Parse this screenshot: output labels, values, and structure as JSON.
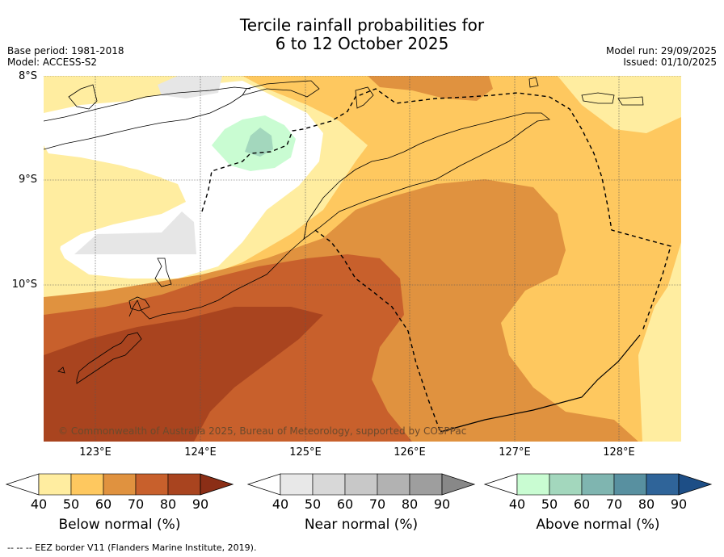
{
  "title": {
    "line1": "Tercile rainfall probabilities for",
    "line2": "6 to 12 October 2025"
  },
  "meta": {
    "base_period": "Base period: 1981-2018",
    "model": "Model: ACCESS-S2",
    "model_run": "Model run: 29/09/2025",
    "issued": "Issued: 01/10/2025"
  },
  "map": {
    "lat_labels": [
      "8°S",
      "9°S",
      "10°S"
    ],
    "lon_labels": [
      "123°E",
      "124°E",
      "125°E",
      "126°E",
      "127°E",
      "128°E"
    ],
    "copyright": "© Commonwealth of Australia 2025, Bureau of Meteorology, supported by COSPPac"
  },
  "colorbars": {
    "below": {
      "title": "Below normal (%)",
      "ticks": [
        "40",
        "50",
        "60",
        "70",
        "80",
        "90"
      ],
      "colors": [
        "#ffffff",
        "#ffeda0",
        "#fec85f",
        "#e0923f",
        "#c8602c",
        "#a9441f",
        "#8b2e16"
      ]
    },
    "near": {
      "title": "Near normal (%)",
      "ticks": [
        "40",
        "50",
        "60",
        "70",
        "80",
        "90"
      ],
      "colors": [
        "#ffffff",
        "#e8e8e8",
        "#d8d8d8",
        "#c8c8c8",
        "#b2b2b2",
        "#9e9e9e",
        "#888888"
      ]
    },
    "above": {
      "title": "Above normal (%)",
      "ticks": [
        "40",
        "50",
        "60",
        "70",
        "80",
        "90"
      ],
      "colors": [
        "#ffffff",
        "#c9fcd2",
        "#a3d7bd",
        "#7fb5b0",
        "#5890a0",
        "#2f6499",
        "#1d4e86"
      ]
    }
  },
  "footnote": "--  --  -- EEZ border V11 (Flanders Marine Institute, 2019)."
}
